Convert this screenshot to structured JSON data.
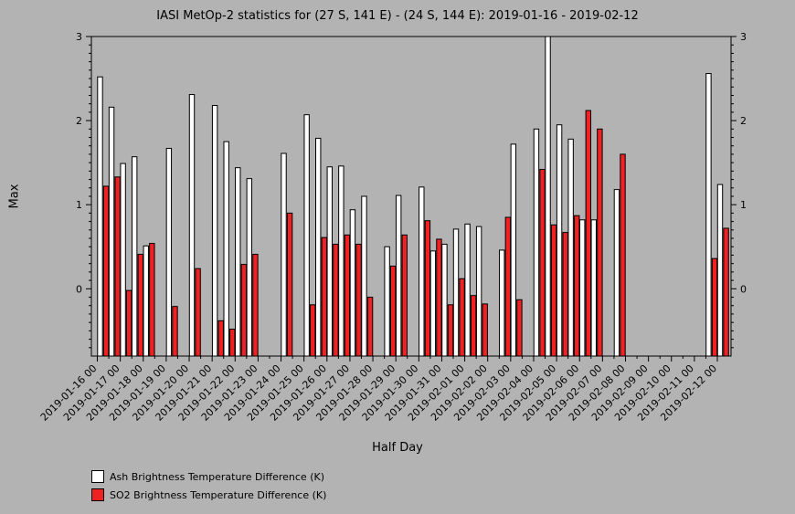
{
  "chart_data": {
    "type": "bar",
    "title": "IASI MetOp-2 statistics for (27 S, 141 E) - (24 S, 144 E): 2019-01-16 - 2019-02-12",
    "xlabel": "Half Day",
    "ylabel": "Max",
    "ylim": [
      -0.8,
      3
    ],
    "yticks": [
      0,
      1,
      2,
      3
    ],
    "x_tick_labels": [
      "2019-01-16 00",
      "2019-01-17 00",
      "2019-01-18 00",
      "2019-01-19 00",
      "2019-01-20 00",
      "2019-01-21 00",
      "2019-01-22 00",
      "2019-01-23 00",
      "2019-01-24 00",
      "2019-01-25 00",
      "2019-01-26 00",
      "2019-01-27 00",
      "2019-01-28 00",
      "2019-01-29 00",
      "2019-01-30 00",
      "2019-01-31 00",
      "2019-02-01 00",
      "2019-02-02 00",
      "2019-02-03 00",
      "2019-02-04 00",
      "2019-02-05 00",
      "2019-02-06 00",
      "2019-02-07 00",
      "2019-02-08 00",
      "2019-02-09 00",
      "2019-02-10 00",
      "2019-02-11 00",
      "2019-02-12 00"
    ],
    "legend_position": "bottom-left",
    "series": [
      {
        "name": "Ash Brightness Temperature Difference (K)",
        "color": "#ffffff",
        "values": [
          2.52,
          2.16,
          1.49,
          1.57,
          0.51,
          null,
          1.67,
          null,
          2.31,
          null,
          2.18,
          1.75,
          1.44,
          1.31,
          null,
          null,
          1.61,
          null,
          2.07,
          1.79,
          1.45,
          1.46,
          0.94,
          1.1,
          null,
          0.5,
          1.11,
          null,
          1.21,
          0.45,
          0.53,
          0.71,
          0.77,
          0.74,
          null,
          0.46,
          1.72,
          null,
          1.9,
          3.03,
          1.95,
          1.78,
          0.82,
          0.82,
          null,
          1.18,
          null,
          null,
          null,
          null,
          null,
          null,
          null,
          2.56,
          1.24,
          null
        ]
      },
      {
        "name": "SO2 Brightness Temperature Difference (K)",
        "color": "#ee2222",
        "values": [
          1.22,
          1.33,
          -0.02,
          0.41,
          0.54,
          null,
          -0.21,
          null,
          0.24,
          null,
          -0.38,
          -0.48,
          0.29,
          0.41,
          null,
          null,
          0.9,
          null,
          -0.19,
          0.61,
          0.53,
          0.64,
          0.53,
          -0.1,
          null,
          0.27,
          0.64,
          null,
          0.81,
          0.59,
          -0.19,
          0.12,
          -0.08,
          -0.18,
          null,
          0.85,
          -0.13,
          null,
          1.42,
          0.76,
          0.67,
          0.87,
          2.12,
          1.9,
          null,
          1.6,
          null,
          null,
          null,
          null,
          null,
          null,
          null,
          0.36,
          0.72,
          null
        ]
      }
    ]
  }
}
